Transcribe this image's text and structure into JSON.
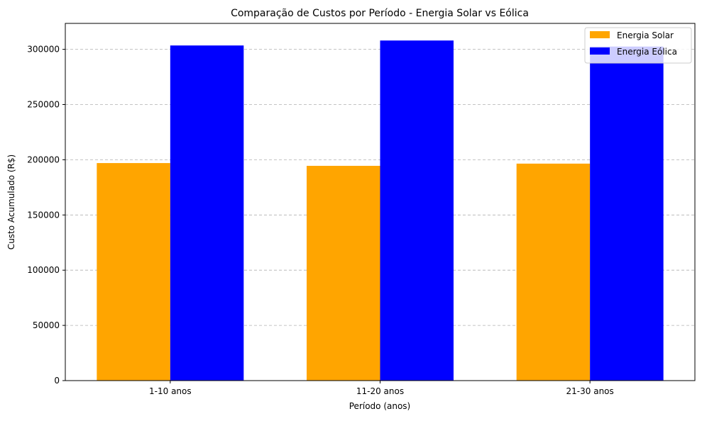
{
  "chart_data": {
    "type": "bar",
    "title": "Comparação de Custos por Período - Energia Solar vs Eólica",
    "xlabel": "Período (anos)",
    "ylabel": "Custo Acumulado (R$)",
    "categories": [
      "1-10 anos",
      "11-20 anos",
      "21-30 anos"
    ],
    "series": [
      {
        "name": "Energia Solar",
        "color": "#ffa500",
        "values": [
          197000,
          194500,
          196500
        ]
      },
      {
        "name": "Energia Eólica",
        "color": "#0000ff",
        "values": [
          303500,
          308000,
          302500
        ]
      }
    ],
    "ylim": [
      0,
      323500
    ],
    "yticks": [
      0,
      50000,
      100000,
      150000,
      200000,
      250000,
      300000
    ],
    "ytick_labels": [
      "0",
      "50000",
      "100000",
      "150000",
      "200000",
      "250000",
      "300000"
    ],
    "grid": "y-dashed",
    "legend_position": "top-right"
  }
}
